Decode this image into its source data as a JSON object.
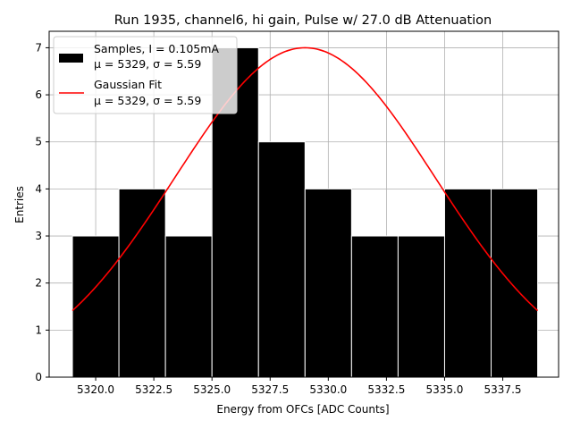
{
  "chart_data": {
    "type": "bar",
    "title": "Run 1935, channel6, hi gain, Pulse w/ 27.0 dB Attenuation",
    "xlabel": "Energy from OFCs [ADC Counts]",
    "ylabel": "Entries",
    "xlim": [
      5318.0,
      5339.9
    ],
    "ylim": [
      0,
      7.35
    ],
    "grid": true,
    "legend_position": "upper-left",
    "x_ticks": [
      5320.0,
      5322.5,
      5325.0,
      5327.5,
      5330.0,
      5332.5,
      5335.0,
      5337.5
    ],
    "x_tick_labels": [
      "5320.0",
      "5322.5",
      "5325.0",
      "5327.5",
      "5330.0",
      "5332.5",
      "5335.0",
      "5337.5"
    ],
    "y_ticks": [
      0,
      1,
      2,
      3,
      4,
      5,
      6,
      7
    ],
    "y_tick_labels": [
      "0",
      "1",
      "2",
      "3",
      "4",
      "5",
      "6",
      "7"
    ],
    "histogram": {
      "bin_edges": [
        5319.0,
        5321.0,
        5323.0,
        5325.0,
        5327.0,
        5329.0,
        5331.0,
        5333.0,
        5335.0,
        5337.0,
        5339.0
      ],
      "counts": [
        3,
        4,
        3,
        7,
        5,
        4,
        3,
        3,
        4,
        4
      ],
      "color": "#000000",
      "edge_color": "#ffffff"
    },
    "fit": {
      "mu": 5329,
      "sigma": 5.59,
      "amplitude": 7.0,
      "x_range": [
        5319.0,
        5339.0
      ],
      "color": "#ff0000"
    },
    "legend": [
      {
        "line1": "Samples, I = 0.105mA",
        "line2": "μ = 5329, σ = 5.59",
        "type": "patch",
        "color": "#000000"
      },
      {
        "line1": "Gaussian Fit",
        "line2": "μ = 5329, σ = 5.59",
        "type": "line",
        "color": "#ff0000"
      }
    ]
  }
}
